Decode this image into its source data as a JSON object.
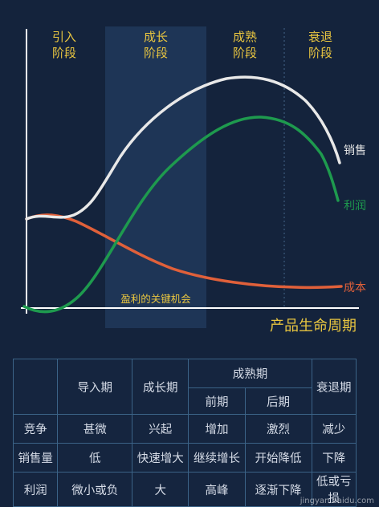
{
  "diagram": {
    "stages": [
      {
        "line1": "引入",
        "line2": "阶段"
      },
      {
        "line1": "成长",
        "line2": "阶段"
      },
      {
        "line1": "成熟",
        "line2": "阶段"
      },
      {
        "line1": "衰退",
        "line2": "阶段"
      }
    ],
    "curve_labels": {
      "sales": "销售",
      "profit": "利润",
      "cost": "成本"
    },
    "band_caption": "盈利的关键机会",
    "axis_caption": "产品生命周期",
    "colors": {
      "background": "#14233c",
      "highlight_band": "#1e3556",
      "sales": "#e8e8e8",
      "profit": "#1e9a4e",
      "cost": "#e0603a",
      "stage_text": "#e8c540"
    }
  },
  "table": {
    "header": {
      "intro": "导入期",
      "growth": "成长期",
      "maturity": "成熟期",
      "early": "前期",
      "late": "后期",
      "decline": "衰退期"
    },
    "rows": [
      {
        "label": "竞争",
        "cells": [
          "甚微",
          "兴起",
          "增加",
          "激烈",
          "减少"
        ]
      },
      {
        "label": "销售量",
        "cells": [
          "低",
          "快速增大",
          "继续增长",
          "开始降低",
          "下降"
        ]
      },
      {
        "label": "利润",
        "cells": [
          "微小或负",
          "大",
          "高峰",
          "逐渐下降",
          "低或亏损"
        ]
      }
    ]
  },
  "watermark": "jingyan.baidu.com"
}
